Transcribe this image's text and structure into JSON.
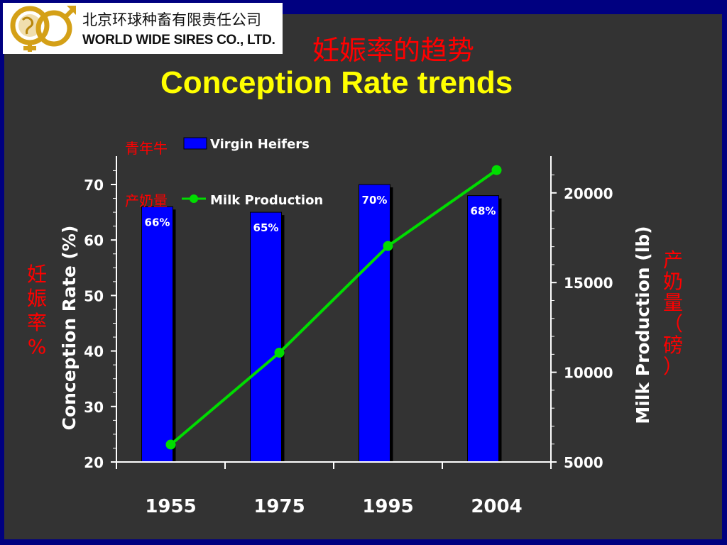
{
  "logo": {
    "chinese_name": "北京环球种畜有限责任公司",
    "english_name": "WORLD WIDE SIRES CO., LTD."
  },
  "title_cn": "妊娠率的趋势",
  "title_en": "Conception Rate trends",
  "annotations": {
    "virgin_heifers_cn": "青年牛",
    "milk_production_cn": "产奶量",
    "left_axis_cn": "妊娠率%",
    "right_axis_cn": "产奶量（磅）"
  },
  "colors": {
    "background": "#000080",
    "panel": "#333333",
    "bar": "#0000ff",
    "line": "#00dd00",
    "title_en": "#ffff00",
    "title_cn": "#ff0000"
  },
  "chart_data": {
    "type": "bar",
    "categories": [
      "1955",
      "1975",
      "1995",
      "2004"
    ],
    "series": [
      {
        "name": "Virgin Heifers",
        "type": "bar",
        "axis": "left",
        "values": [
          66,
          65,
          70,
          68
        ],
        "labels": [
          "66%",
          "65%",
          "70%",
          "68%"
        ]
      },
      {
        "name": "Milk Production",
        "type": "line",
        "axis": "right",
        "values": [
          5970,
          11090,
          17040,
          21270
        ]
      }
    ],
    "ylabel_left": "Conception Rate (%)",
    "ylabel_right": "Milk Production (lb)",
    "ylim_left": [
      20,
      75
    ],
    "ylim_right": [
      5000,
      22000
    ],
    "yticks_left": [
      20,
      30,
      40,
      50,
      60,
      70
    ],
    "yticks_right": [
      5000,
      10000,
      15000,
      20000
    ],
    "legend_position": "top-left",
    "grid": false
  }
}
